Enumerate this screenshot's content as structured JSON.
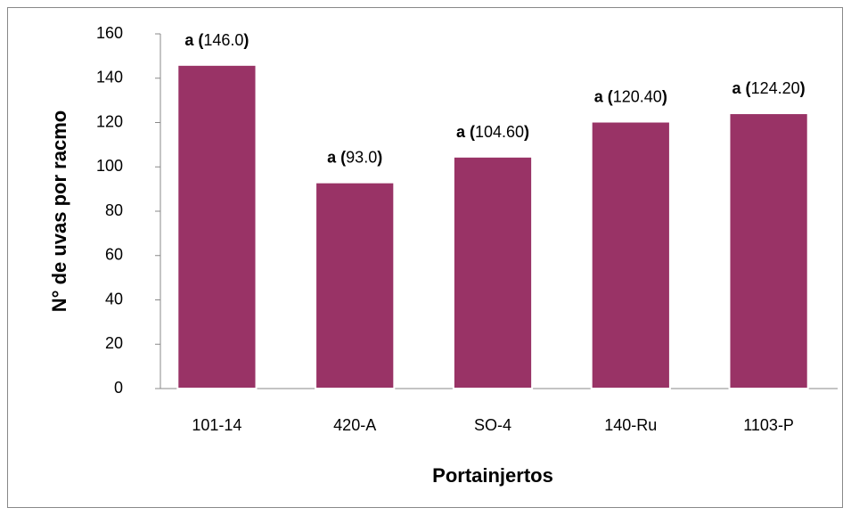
{
  "chart_data": {
    "type": "bar",
    "categories": [
      "101-14",
      "420-A",
      "SO-4",
      "140-Ru",
      "1103-P"
    ],
    "values": [
      146.0,
      93.0,
      104.6,
      120.4,
      124.2
    ],
    "value_labels": [
      "a (146.0)",
      "a (93.0)",
      "a (104.60)",
      "a (120.40)",
      "a (124.20)"
    ],
    "color": "#993366",
    "xlabel": "Portainjertos",
    "ylabel": "N° de uvas por racmo",
    "ylim": [
      0,
      160
    ],
    "yticks": [
      0,
      20,
      40,
      60,
      80,
      100,
      120,
      140,
      160
    ],
    "grid": false
  }
}
